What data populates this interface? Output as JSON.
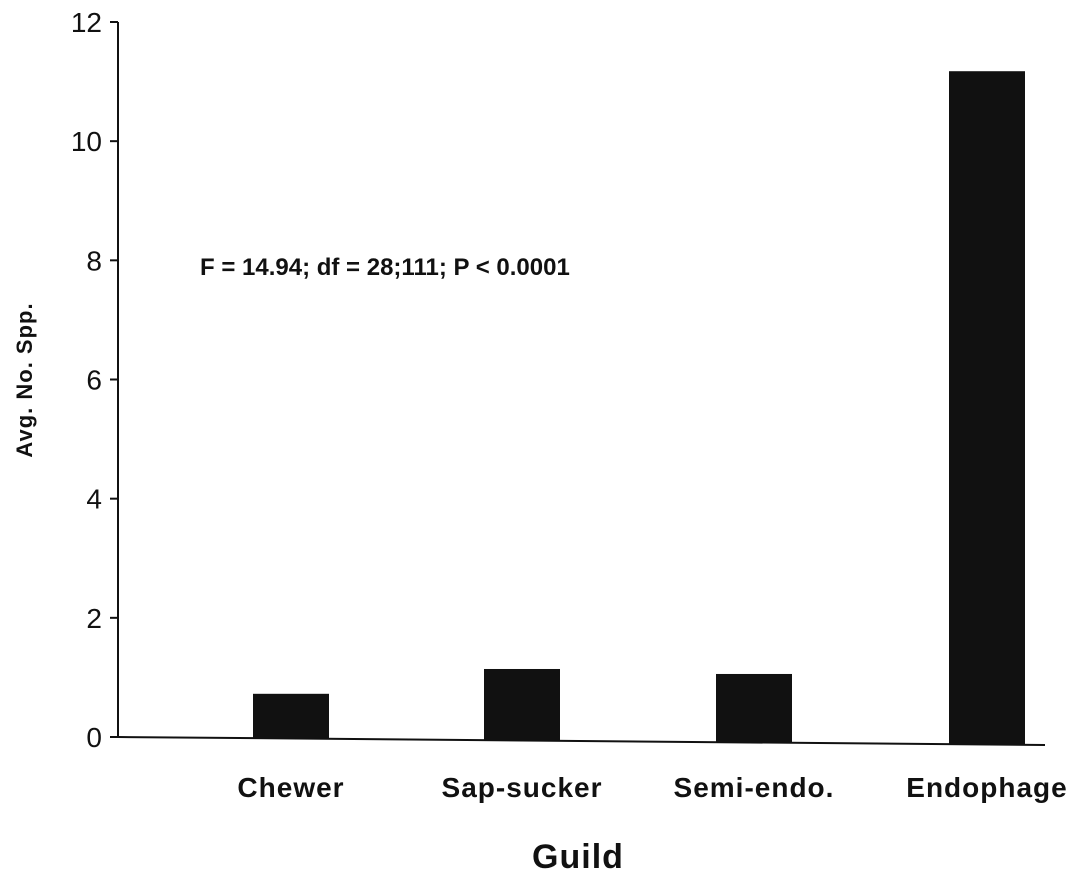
{
  "chart_data": {
    "type": "bar",
    "categories": [
      "Chewer",
      "Sap-sucker",
      "Semi-endo.",
      "Endophage"
    ],
    "values": [
      0.75,
      1.2,
      1.15,
      11.3
    ],
    "xlabel": "Guild",
    "ylabel": "Avg. No. Spp.",
    "ylim": [
      0,
      12
    ],
    "yticks": [
      "0",
      "2",
      "4",
      "6",
      "8",
      "10",
      "12"
    ],
    "annotation": "F = 14.94; df = 28;111; P < 0.0001",
    "grid": false,
    "legend": "none",
    "colors": {
      "bar": "#111111",
      "axis": "#111111"
    }
  }
}
